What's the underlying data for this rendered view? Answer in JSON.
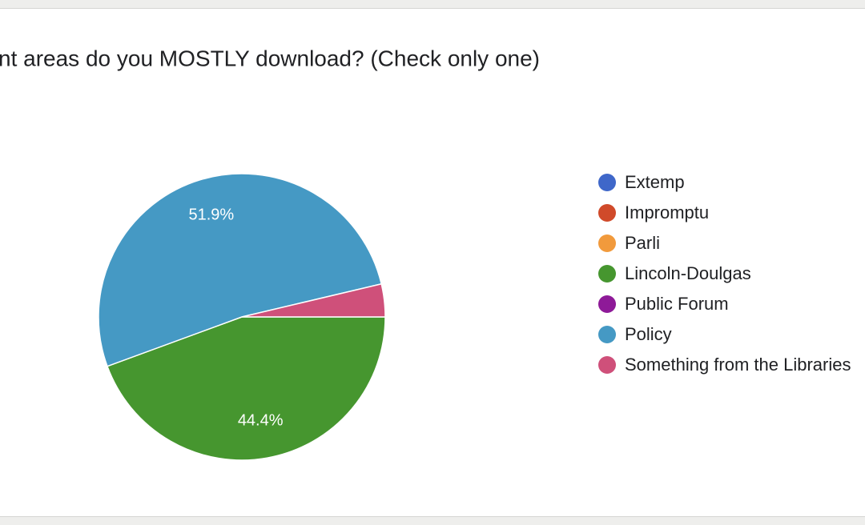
{
  "chart_data": {
    "type": "pie",
    "title": "nt areas do you MOSTLY download? (Check only one)",
    "categories": [
      "Extemp",
      "Impromptu",
      "Parli",
      "Lincoln-Doulgas",
      "Public Forum",
      "Policy",
      "Something from the Libraries"
    ],
    "values": [
      0,
      0,
      0,
      44.4,
      0,
      51.9,
      3.7
    ],
    "value_labels": [
      null,
      null,
      null,
      "44.4%",
      null,
      "51.9%",
      null
    ],
    "colors": [
      "#3f67c9",
      "#d04a2a",
      "#f19a3c",
      "#46962f",
      "#8e1a98",
      "#4599c4",
      "#cf507a"
    ],
    "legend": "right"
  }
}
